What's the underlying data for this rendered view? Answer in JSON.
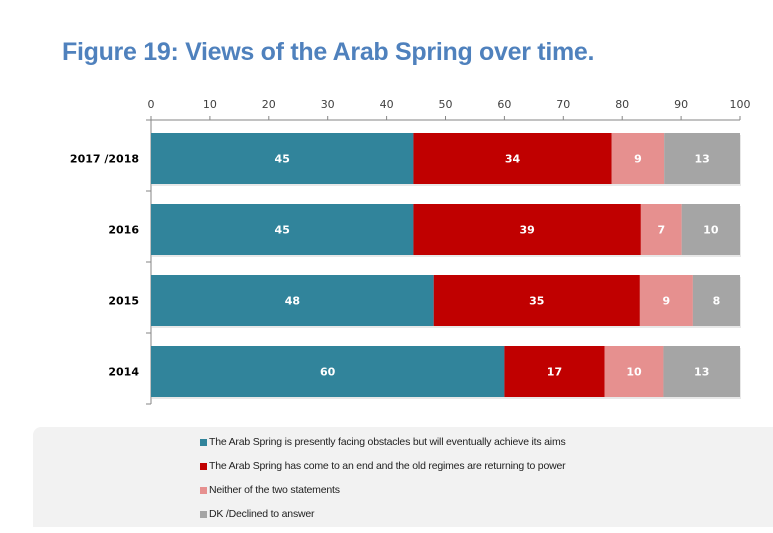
{
  "title": "Figure 19: Views of the Arab Spring over time.",
  "chart_data": {
    "type": "bar",
    "orientation": "horizontal",
    "stacked": true,
    "title": "Figure 19: Views of the Arab Spring over time.",
    "xlabel": "",
    "ylabel": "",
    "xlim": [
      0,
      100
    ],
    "x_ticks": [
      "0",
      "10",
      "20",
      "30",
      "40",
      "50",
      "60",
      "70",
      "80",
      "90",
      "100"
    ],
    "x_tick_values": [
      0,
      10,
      20,
      30,
      40,
      50,
      60,
      70,
      80,
      90,
      100
    ],
    "grid": false,
    "legend_position": "bottom",
    "categories": [
      "2017 /2018",
      "2016",
      "2015",
      "2014"
    ],
    "series": [
      {
        "name": "The Arab Spring is presently facing obstacles but will eventually achieve its aims",
        "color": "#31849b",
        "values": [
          45,
          45,
          48,
          60
        ]
      },
      {
        "name": "The Arab Spring has come to an end and the old regimes are returning to power",
        "color": "#c00000",
        "values": [
          34,
          39,
          35,
          17
        ]
      },
      {
        "name": "Neither of the two statements",
        "color": "#e6908f",
        "values": [
          9,
          7,
          9,
          10
        ]
      },
      {
        "name": "DK /Declined to answer",
        "color": "#a5a5a5",
        "values": [
          13,
          10,
          8,
          13
        ]
      }
    ]
  }
}
